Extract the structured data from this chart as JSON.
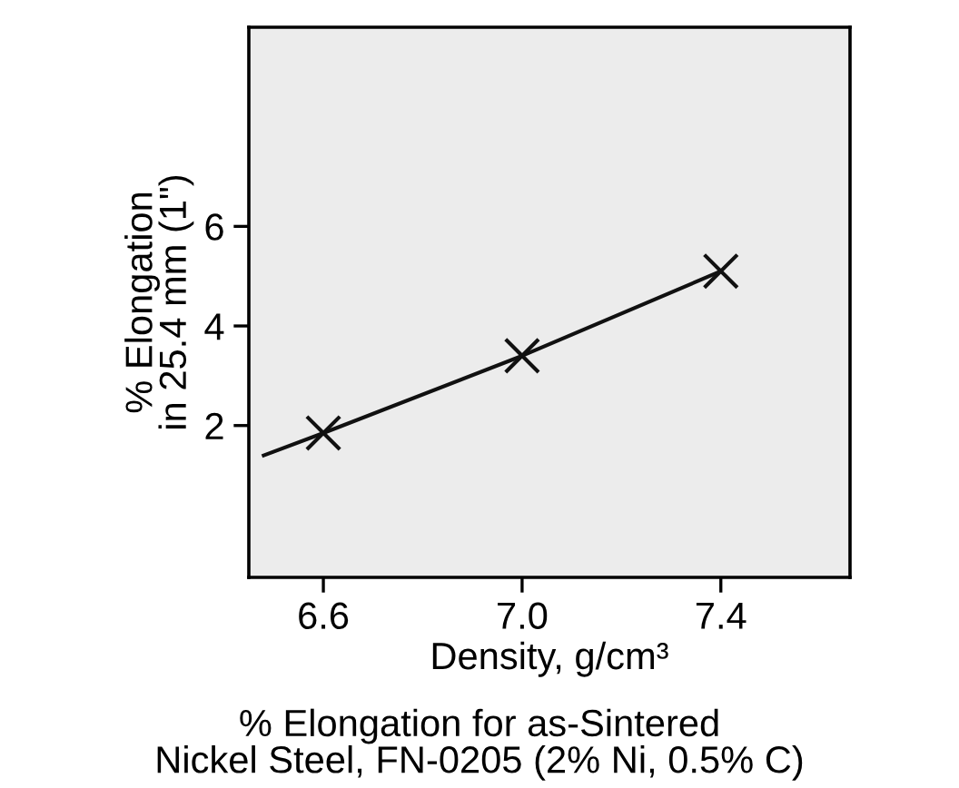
{
  "chart_data": {
    "type": "line",
    "title": "% Elongation for as-Sintered\nNickel Steel, FN-0205 (2% Ni, 0.5% C)",
    "xlabel": "Density, g/cm³",
    "ylabel": "% Elongation\nin 25.4 mm (1\")",
    "series": [
      {
        "color": "#111111",
        "x": [
          6.48,
          6.6,
          7.0,
          7.4
        ],
        "values": [
          1.4,
          1.85,
          3.4,
          5.1
        ],
        "marker": "none",
        "line_style": "solid"
      },
      {
        "type": "scatter",
        "color": "#111111",
        "x": [
          6.6,
          7.0,
          7.4
        ],
        "values": [
          1.85,
          3.4,
          5.1
        ],
        "marker": "cross"
      }
    ],
    "xlim": [
      6.45,
      7.66
    ],
    "ylim": [
      -1.05,
      10
    ],
    "xticks": [
      6.6,
      {
        "value": 7.0,
        "label": "7.0"
      },
      7.4
    ],
    "yticks": [
      2,
      4,
      6
    ],
    "grid": false,
    "legend": false
  }
}
